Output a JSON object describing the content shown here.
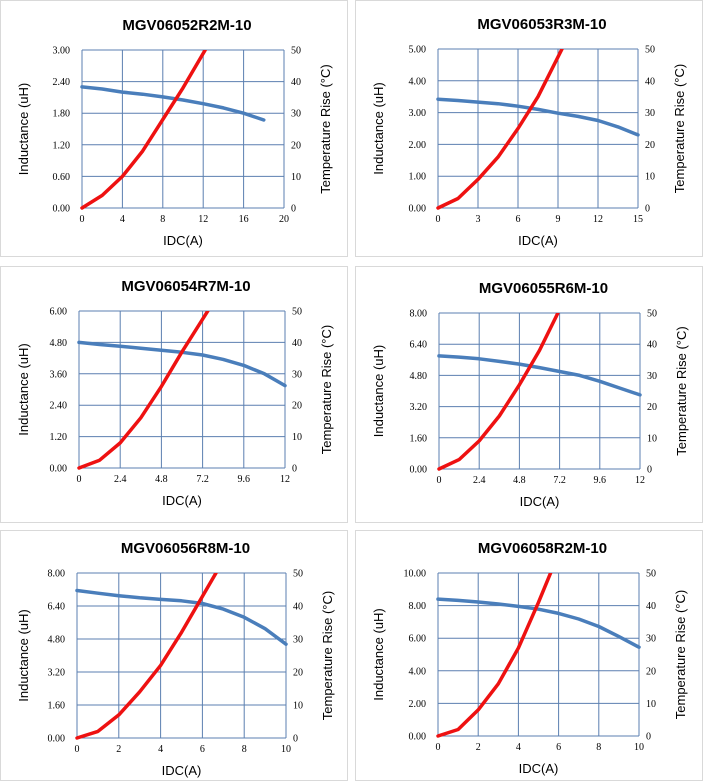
{
  "colors": {
    "grid": "#5b7fb0",
    "inductance": "#4a7ebb",
    "temperature": "#ee1111",
    "border": "#d9d9d9"
  },
  "chart_data": [
    {
      "type": "line",
      "title": "MGV06052R2M-10",
      "xlabel": "IDC(A)",
      "ylabel": "Inductance (uH)",
      "y2label": "Temperature Rise (°C)",
      "xlim": [
        0,
        20
      ],
      "ylim": [
        0,
        3
      ],
      "y2lim": [
        0,
        50
      ],
      "xticks": [
        "0",
        "4",
        "8",
        "12",
        "16",
        "20"
      ],
      "yticks": [
        "0.00",
        "0.60",
        "1.20",
        "1.80",
        "2.40",
        "3.00"
      ],
      "y2ticks": [
        "0",
        "10",
        "20",
        "30",
        "40",
        "50"
      ],
      "series": [
        {
          "name": "Inductance",
          "axis": "left",
          "x": [
            0,
            2,
            4,
            6,
            8,
            10,
            12,
            14,
            16,
            18
          ],
          "y": [
            2.3,
            2.26,
            2.2,
            2.16,
            2.11,
            2.05,
            1.98,
            1.9,
            1.8,
            1.67
          ]
        },
        {
          "name": "Temperature Rise",
          "axis": "right",
          "x": [
            0,
            2,
            4,
            6,
            8,
            10,
            12.2
          ],
          "y": [
            0,
            4,
            10,
            18,
            28,
            38,
            50
          ]
        }
      ]
    },
    {
      "type": "line",
      "title": "MGV06053R3M-10",
      "xlabel": "IDC(A)",
      "ylabel": "Inductance (uH)",
      "y2label": "Temperature Rise (°C)",
      "xlim": [
        0,
        15
      ],
      "ylim": [
        0,
        5
      ],
      "y2lim": [
        0,
        50
      ],
      "xticks": [
        "0",
        "3",
        "6",
        "9",
        "12",
        "15"
      ],
      "yticks": [
        "0.00",
        "1.00",
        "2.00",
        "3.00",
        "4.00",
        "5.00"
      ],
      "y2ticks": [
        "0",
        "10",
        "20",
        "30",
        "40",
        "50"
      ],
      "series": [
        {
          "name": "Inductance",
          "axis": "left",
          "x": [
            0,
            1.5,
            3,
            4.5,
            6,
            7.5,
            9,
            10.5,
            12,
            13.5,
            15
          ],
          "y": [
            3.42,
            3.38,
            3.33,
            3.28,
            3.2,
            3.1,
            2.98,
            2.88,
            2.75,
            2.55,
            2.3
          ]
        },
        {
          "name": "Temperature Rise",
          "axis": "right",
          "x": [
            0,
            1.5,
            3,
            4.5,
            6,
            7.5,
            9.3
          ],
          "y": [
            0,
            3,
            9,
            16,
            25,
            35,
            50
          ]
        }
      ]
    },
    {
      "type": "line",
      "title": "MGV06054R7M-10",
      "xlabel": "IDC(A)",
      "ylabel": "Inductance (uH)",
      "y2label": "Temperature Rise (°C)",
      "xlim": [
        0,
        12
      ],
      "ylim": [
        0,
        6
      ],
      "y2lim": [
        0,
        50
      ],
      "xticks": [
        "0",
        "2.4",
        "4.8",
        "7.2",
        "9.6",
        "12"
      ],
      "yticks": [
        "0.00",
        "1.20",
        "2.40",
        "3.60",
        "4.80",
        "6.00"
      ],
      "y2ticks": [
        "0",
        "10",
        "20",
        "30",
        "40",
        "50"
      ],
      "series": [
        {
          "name": "Inductance",
          "axis": "left",
          "x": [
            0,
            1.2,
            2.4,
            3.6,
            4.8,
            6,
            7.2,
            8.4,
            9.6,
            10.8,
            12
          ],
          "y": [
            4.8,
            4.72,
            4.65,
            4.58,
            4.5,
            4.42,
            4.32,
            4.15,
            3.92,
            3.6,
            3.15
          ]
        },
        {
          "name": "Temperature Rise",
          "axis": "right",
          "x": [
            0,
            1.2,
            2.4,
            3.6,
            4.8,
            6,
            7.5
          ],
          "y": [
            0,
            2.5,
            8,
            16,
            26,
            37,
            50
          ]
        }
      ]
    },
    {
      "type": "line",
      "title": "MGV06055R6M-10",
      "xlabel": "IDC(A)",
      "ylabel": "Inductance (uH)",
      "y2label": "Temperature Rise (°C)",
      "xlim": [
        0,
        12
      ],
      "ylim": [
        0,
        8
      ],
      "y2lim": [
        0,
        50
      ],
      "xticks": [
        "0",
        "2.4",
        "4.8",
        "7.2",
        "9.6",
        "12"
      ],
      "yticks": [
        "0.00",
        "1.60",
        "3.20",
        "4.80",
        "6.40",
        "8.00"
      ],
      "y2ticks": [
        "0",
        "10",
        "20",
        "30",
        "40",
        "50"
      ],
      "series": [
        {
          "name": "Inductance",
          "axis": "left",
          "x": [
            0,
            1.2,
            2.4,
            3.6,
            4.8,
            6,
            7.2,
            8.4,
            9.6,
            10.8,
            12
          ],
          "y": [
            5.8,
            5.74,
            5.65,
            5.52,
            5.38,
            5.2,
            5.0,
            4.8,
            4.5,
            4.15,
            3.8
          ]
        },
        {
          "name": "Temperature Rise",
          "axis": "right",
          "x": [
            0,
            1.2,
            2.4,
            3.6,
            4.8,
            6,
            7.1
          ],
          "y": [
            0,
            3,
            9,
            17,
            27,
            38,
            50
          ]
        }
      ]
    },
    {
      "type": "line",
      "title": "MGV06056R8M-10",
      "xlabel": "IDC(A)",
      "ylabel": "Inductance (uH)",
      "y2label": "Temperature Rise (°C)",
      "xlim": [
        0,
        10
      ],
      "ylim": [
        0,
        8
      ],
      "y2lim": [
        0,
        50
      ],
      "xticks": [
        "0",
        "2",
        "4",
        "6",
        "8",
        "10"
      ],
      "yticks": [
        "0.00",
        "1.60",
        "3.20",
        "4.80",
        "6.40",
        "8.00"
      ],
      "y2ticks": [
        "0",
        "10",
        "20",
        "30",
        "40",
        "50"
      ],
      "series": [
        {
          "name": "Inductance",
          "axis": "left",
          "x": [
            0,
            1,
            2,
            3,
            4,
            5,
            6,
            7,
            8,
            9,
            10
          ],
          "y": [
            7.15,
            7.02,
            6.9,
            6.8,
            6.72,
            6.65,
            6.52,
            6.25,
            5.85,
            5.3,
            4.55
          ]
        },
        {
          "name": "Temperature Rise",
          "axis": "right",
          "x": [
            0,
            1,
            2,
            3,
            4,
            5,
            6.65
          ],
          "y": [
            0,
            2,
            7,
            14,
            22,
            32,
            50
          ]
        }
      ]
    },
    {
      "type": "line",
      "title": "MGV06058R2M-10",
      "xlabel": "IDC(A)",
      "ylabel": "Inductance (uH)",
      "y2label": "Temperature Rise (°C)",
      "xlim": [
        0,
        10
      ],
      "ylim": [
        0,
        10
      ],
      "y2lim": [
        0,
        50
      ],
      "xticks": [
        "0",
        "2",
        "4",
        "6",
        "8",
        "10"
      ],
      "yticks": [
        "0.00",
        "2.00",
        "4.00",
        "6.00",
        "8.00",
        "10.00"
      ],
      "y2ticks": [
        "0",
        "10",
        "20",
        "30",
        "40",
        "50"
      ],
      "series": [
        {
          "name": "Inductance",
          "axis": "left",
          "x": [
            0,
            1,
            2,
            3,
            4,
            5,
            6,
            7,
            8,
            9,
            10
          ],
          "y": [
            8.4,
            8.32,
            8.22,
            8.1,
            7.95,
            7.78,
            7.52,
            7.18,
            6.72,
            6.1,
            5.45
          ]
        },
        {
          "name": "Temperature Rise",
          "axis": "right",
          "x": [
            0,
            1,
            2,
            3,
            4,
            5,
            5.6
          ],
          "y": [
            0,
            2,
            8,
            16,
            27,
            41,
            50
          ]
        }
      ]
    }
  ]
}
